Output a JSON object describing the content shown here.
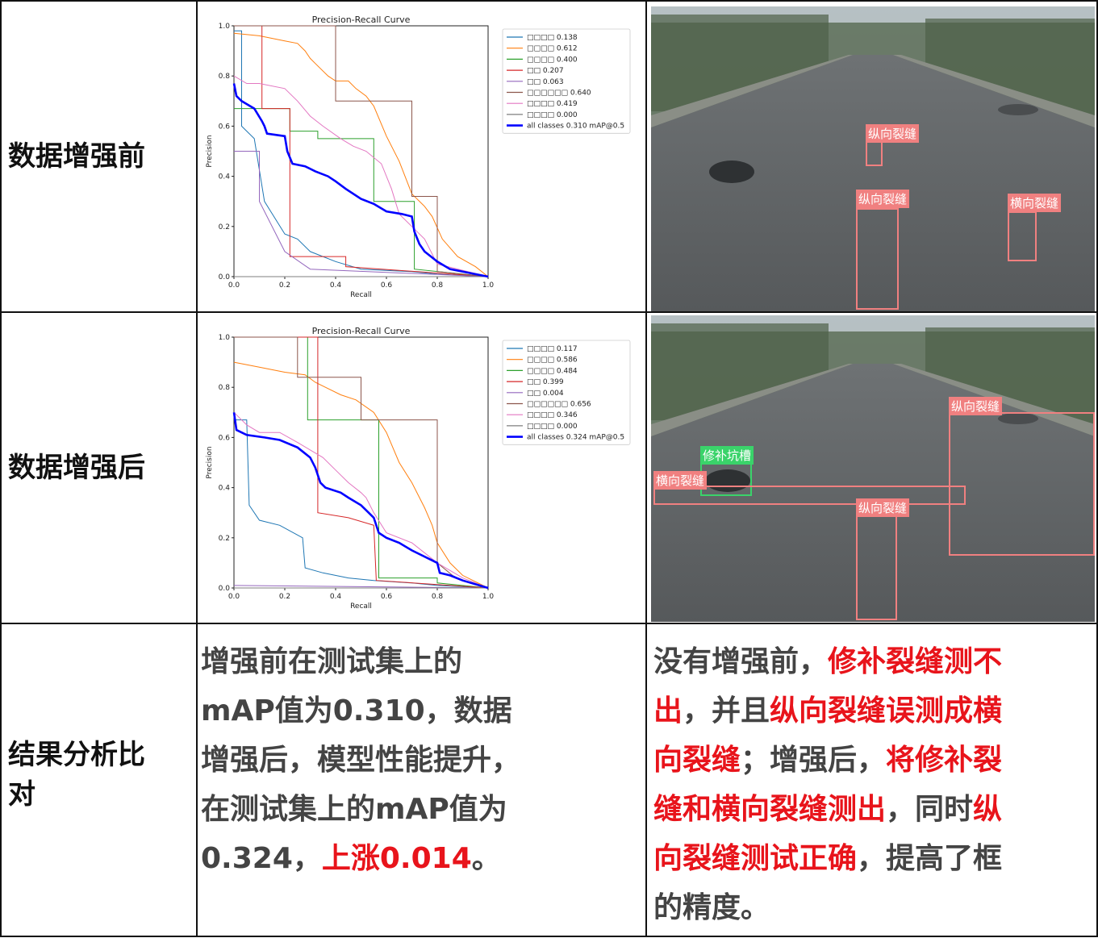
{
  "rows": {
    "before_label": "数据增强前",
    "after_label": "数据增强后",
    "analysis_label_line1": "结果分析比",
    "analysis_label_line2": "对"
  },
  "analysis": {
    "left_lines": [
      [
        {
          "t": "增强前在测试集上的",
          "red": false
        }
      ],
      [
        {
          "t": "mAP值为0.310，数据",
          "red": false
        }
      ],
      [
        {
          "t": "增强后，模型性能提升，",
          "red": false
        }
      ],
      [
        {
          "t": "在测试集上的mAP值为",
          "red": false
        }
      ],
      [
        {
          "t": "0.324，",
          "red": false
        },
        {
          "t": "上涨0.014",
          "red": true
        },
        {
          "t": "。",
          "red": false
        }
      ]
    ],
    "right_lines": [
      [
        {
          "t": "没有增强前，",
          "red": false
        },
        {
          "t": "修补裂缝测不",
          "red": true
        }
      ],
      [
        {
          "t": "出",
          "red": true
        },
        {
          "t": "，并且",
          "red": false
        },
        {
          "t": "纵向裂缝误测成横",
          "red": true
        }
      ],
      [
        {
          "t": "向裂缝",
          "red": true
        },
        {
          "t": "；增强后，",
          "red": false
        },
        {
          "t": "将修补裂",
          "red": true
        }
      ],
      [
        {
          "t": "缝和横向裂缝测出",
          "red": true
        },
        {
          "t": "，同时",
          "red": false
        },
        {
          "t": "纵",
          "red": true
        }
      ],
      [
        {
          "t": "向裂缝测试正确",
          "red": true
        },
        {
          "t": "，提高了框",
          "red": false
        }
      ],
      [
        {
          "t": "的精度。",
          "red": false
        }
      ]
    ]
  },
  "colors": {
    "c0": "#1f77b4",
    "c1": "#ff7f0e",
    "c2": "#2ca02c",
    "c3": "#d62728",
    "c4": "#9467bd",
    "c5": "#8c564b",
    "c6": "#e377c2",
    "c7": "#7f7f7f",
    "all": "#0000ff",
    "det_red": "#f08080",
    "det_green": "#3ad36a"
  },
  "chart_data": [
    {
      "type": "line",
      "title": "Precision-Recall Curve",
      "xlabel": "Recall",
      "ylabel": "Precision",
      "xlim": [
        0,
        1
      ],
      "ylim": [
        0,
        1
      ],
      "xticks": [
        "0.0",
        "0.2",
        "0.4",
        "0.6",
        "0.8",
        "1.0"
      ],
      "yticks": [
        "0.0",
        "0.2",
        "0.4",
        "0.6",
        "0.8",
        "1.0"
      ],
      "legend_position": "top-right",
      "series": [
        {
          "name": "□□□□ 0.138",
          "color": "c0",
          "points": [
            [
              0,
              0.98
            ],
            [
              0.03,
              0.98
            ],
            [
              0.03,
              0.6
            ],
            [
              0.08,
              0.55
            ],
            [
              0.12,
              0.3
            ],
            [
              0.2,
              0.17
            ],
            [
              0.25,
              0.15
            ],
            [
              0.3,
              0.1
            ],
            [
              0.4,
              0.06
            ],
            [
              0.5,
              0.03
            ],
            [
              0.7,
              0.02
            ],
            [
              0.8,
              0.01
            ],
            [
              1,
              0
            ]
          ]
        },
        {
          "name": "□□□□ 0.612",
          "color": "c1",
          "points": [
            [
              0,
              0.97
            ],
            [
              0.1,
              0.96
            ],
            [
              0.2,
              0.94
            ],
            [
              0.25,
              0.93
            ],
            [
              0.28,
              0.9
            ],
            [
              0.3,
              0.87
            ],
            [
              0.32,
              0.85
            ],
            [
              0.37,
              0.8
            ],
            [
              0.4,
              0.78
            ],
            [
              0.45,
              0.78
            ],
            [
              0.48,
              0.75
            ],
            [
              0.52,
              0.72
            ],
            [
              0.55,
              0.68
            ],
            [
              0.6,
              0.56
            ],
            [
              0.65,
              0.46
            ],
            [
              0.7,
              0.33
            ],
            [
              0.75,
              0.28
            ],
            [
              0.78,
              0.24
            ],
            [
              0.82,
              0.15
            ],
            [
              0.88,
              0.08
            ],
            [
              0.95,
              0.04
            ],
            [
              1,
              0
            ]
          ]
        },
        {
          "name": "□□□□ 0.400",
          "color": "c2",
          "points": [
            [
              0,
              0.67
            ],
            [
              0.22,
              0.67
            ],
            [
              0.22,
              0.58
            ],
            [
              0.33,
              0.58
            ],
            [
              0.33,
              0.55
            ],
            [
              0.55,
              0.55
            ],
            [
              0.55,
              0.3
            ],
            [
              0.71,
              0.3
            ],
            [
              0.71,
              0.03
            ],
            [
              1,
              0
            ]
          ]
        },
        {
          "name": "□□ 0.207",
          "color": "c3",
          "points": [
            [
              0,
              1
            ],
            [
              0.11,
              1
            ],
            [
              0.11,
              0.67
            ],
            [
              0.22,
              0.67
            ],
            [
              0.22,
              0.08
            ],
            [
              0.44,
              0.08
            ],
            [
              0.44,
              0.04
            ],
            [
              1,
              0
            ]
          ]
        },
        {
          "name": "□□ 0.063",
          "color": "c4",
          "points": [
            [
              0,
              0.5
            ],
            [
              0.1,
              0.5
            ],
            [
              0.1,
              0.3
            ],
            [
              0.2,
              0.1
            ],
            [
              0.3,
              0.03
            ],
            [
              1,
              0
            ]
          ]
        },
        {
          "name": "□□□□□□ 0.640",
          "color": "c5",
          "points": [
            [
              0,
              1
            ],
            [
              0.4,
              1
            ],
            [
              0.4,
              0.7
            ],
            [
              0.7,
              0.7
            ],
            [
              0.7,
              0.32
            ],
            [
              0.8,
              0.32
            ],
            [
              0.8,
              0.02
            ],
            [
              1,
              0
            ]
          ]
        },
        {
          "name": "□□□□ 0.419",
          "color": "c6",
          "points": [
            [
              0,
              0.8
            ],
            [
              0.05,
              0.77
            ],
            [
              0.1,
              0.77
            ],
            [
              0.2,
              0.75
            ],
            [
              0.25,
              0.7
            ],
            [
              0.3,
              0.64
            ],
            [
              0.35,
              0.6
            ],
            [
              0.42,
              0.55
            ],
            [
              0.47,
              0.52
            ],
            [
              0.52,
              0.5
            ],
            [
              0.58,
              0.45
            ],
            [
              0.62,
              0.35
            ],
            [
              0.65,
              0.25
            ],
            [
              0.7,
              0.2
            ],
            [
              0.75,
              0.15
            ],
            [
              0.8,
              0.05
            ],
            [
              1,
              0
            ]
          ]
        },
        {
          "name": "□□□□ 0.000",
          "color": "c7",
          "points": [
            [
              0,
              0
            ],
            [
              1,
              0
            ]
          ]
        },
        {
          "name": "all classes 0.310 mAP@0.5",
          "color": "all",
          "bold": true,
          "points": [
            [
              0,
              0.77
            ],
            [
              0.01,
              0.72
            ],
            [
              0.03,
              0.7
            ],
            [
              0.08,
              0.67
            ],
            [
              0.11,
              0.62
            ],
            [
              0.12,
              0.6
            ],
            [
              0.13,
              0.57
            ],
            [
              0.2,
              0.56
            ],
            [
              0.21,
              0.5
            ],
            [
              0.23,
              0.45
            ],
            [
              0.28,
              0.44
            ],
            [
              0.32,
              0.42
            ],
            [
              0.37,
              0.4
            ],
            [
              0.4,
              0.38
            ],
            [
              0.44,
              0.35
            ],
            [
              0.5,
              0.31
            ],
            [
              0.55,
              0.29
            ],
            [
              0.6,
              0.26
            ],
            [
              0.66,
              0.25
            ],
            [
              0.7,
              0.24
            ],
            [
              0.71,
              0.18
            ],
            [
              0.73,
              0.13
            ],
            [
              0.75,
              0.1
            ],
            [
              0.8,
              0.06
            ],
            [
              0.85,
              0.03
            ],
            [
              0.95,
              0.01
            ],
            [
              1,
              0
            ]
          ]
        }
      ]
    },
    {
      "type": "line",
      "title": "Precision-Recall Curve",
      "xlabel": "Recall",
      "ylabel": "Precision",
      "xlim": [
        0,
        1
      ],
      "ylim": [
        0,
        1
      ],
      "xticks": [
        "0.0",
        "0.2",
        "0.4",
        "0.6",
        "0.8",
        "1.0"
      ],
      "yticks": [
        "0.0",
        "0.2",
        "0.4",
        "0.6",
        "0.8",
        "1.0"
      ],
      "legend_position": "top-right",
      "series": [
        {
          "name": "□□□□ 0.117",
          "color": "c0",
          "points": [
            [
              0,
              0.67
            ],
            [
              0.05,
              0.67
            ],
            [
              0.06,
              0.33
            ],
            [
              0.1,
              0.27
            ],
            [
              0.18,
              0.25
            ],
            [
              0.27,
              0.2
            ],
            [
              0.28,
              0.08
            ],
            [
              0.35,
              0.06
            ],
            [
              0.45,
              0.04
            ],
            [
              0.55,
              0.03
            ],
            [
              0.7,
              0.02
            ],
            [
              0.8,
              0.01
            ],
            [
              1,
              0
            ]
          ]
        },
        {
          "name": "□□□□ 0.586",
          "color": "c1",
          "points": [
            [
              0,
              0.9
            ],
            [
              0.1,
              0.88
            ],
            [
              0.2,
              0.86
            ],
            [
              0.28,
              0.85
            ],
            [
              0.32,
              0.82
            ],
            [
              0.36,
              0.8
            ],
            [
              0.42,
              0.77
            ],
            [
              0.48,
              0.75
            ],
            [
              0.55,
              0.7
            ],
            [
              0.6,
              0.62
            ],
            [
              0.65,
              0.5
            ],
            [
              0.7,
              0.42
            ],
            [
              0.75,
              0.32
            ],
            [
              0.78,
              0.25
            ],
            [
              0.8,
              0.18
            ],
            [
              0.85,
              0.1
            ],
            [
              0.9,
              0.05
            ],
            [
              1,
              0
            ]
          ]
        },
        {
          "name": "□□□□ 0.484",
          "color": "c2",
          "points": [
            [
              0,
              1
            ],
            [
              0.29,
              1
            ],
            [
              0.29,
              0.67
            ],
            [
              0.57,
              0.67
            ],
            [
              0.57,
              0.04
            ],
            [
              0.8,
              0.04
            ],
            [
              0.8,
              0.02
            ],
            [
              1,
              0
            ]
          ]
        },
        {
          "name": "□□ 0.399",
          "color": "c3",
          "points": [
            [
              0,
              1
            ],
            [
              0.33,
              1
            ],
            [
              0.33,
              0.3
            ],
            [
              0.45,
              0.28
            ],
            [
              0.55,
              0.25
            ],
            [
              0.56,
              0.03
            ],
            [
              1,
              0
            ]
          ]
        },
        {
          "name": "□□ 0.004",
          "color": "c4",
          "points": [
            [
              0,
              0.01
            ],
            [
              1,
              0
            ]
          ]
        },
        {
          "name": "□□□□□□ 0.656",
          "color": "c5",
          "points": [
            [
              0,
              1
            ],
            [
              0.25,
              1
            ],
            [
              0.25,
              0.84
            ],
            [
              0.5,
              0.84
            ],
            [
              0.5,
              0.67
            ],
            [
              0.8,
              0.67
            ],
            [
              0.8,
              0.1
            ],
            [
              0.86,
              0.05
            ],
            [
              0.9,
              0.03
            ],
            [
              1,
              0
            ]
          ]
        },
        {
          "name": "□□□□ 0.346",
          "color": "c6",
          "points": [
            [
              0,
              0.7
            ],
            [
              0.05,
              0.65
            ],
            [
              0.1,
              0.62
            ],
            [
              0.18,
              0.62
            ],
            [
              0.25,
              0.58
            ],
            [
              0.3,
              0.55
            ],
            [
              0.35,
              0.52
            ],
            [
              0.4,
              0.47
            ],
            [
              0.45,
              0.42
            ],
            [
              0.5,
              0.38
            ],
            [
              0.52,
              0.36
            ],
            [
              0.55,
              0.3
            ],
            [
              0.6,
              0.22
            ],
            [
              0.7,
              0.18
            ],
            [
              0.8,
              0.1
            ],
            [
              0.9,
              0.04
            ],
            [
              1,
              0
            ]
          ]
        },
        {
          "name": "□□□□ 0.000",
          "color": "c7",
          "points": [
            [
              0,
              0
            ],
            [
              1,
              0
            ]
          ]
        },
        {
          "name": "all classes 0.324 mAP@0.5",
          "color": "all",
          "bold": true,
          "points": [
            [
              0,
              0.7
            ],
            [
              0.01,
              0.63
            ],
            [
              0.05,
              0.61
            ],
            [
              0.12,
              0.6
            ],
            [
              0.18,
              0.59
            ],
            [
              0.25,
              0.56
            ],
            [
              0.3,
              0.52
            ],
            [
              0.32,
              0.48
            ],
            [
              0.34,
              0.42
            ],
            [
              0.36,
              0.4
            ],
            [
              0.42,
              0.38
            ],
            [
              0.45,
              0.36
            ],
            [
              0.5,
              0.33
            ],
            [
              0.55,
              0.28
            ],
            [
              0.57,
              0.22
            ],
            [
              0.6,
              0.2
            ],
            [
              0.65,
              0.18
            ],
            [
              0.7,
              0.15
            ],
            [
              0.8,
              0.1
            ],
            [
              0.81,
              0.06
            ],
            [
              0.85,
              0.05
            ],
            [
              0.9,
              0.03
            ],
            [
              1,
              0
            ]
          ]
        }
      ]
    }
  ],
  "detections": {
    "top": [
      {
        "label": "纵向裂缝",
        "color": "det_red"
      },
      {
        "label": "纵向裂缝",
        "color": "det_red"
      },
      {
        "label": "横向裂缝",
        "color": "det_red"
      }
    ],
    "bottom": [
      {
        "label": "纵向裂缝",
        "color": "det_red"
      },
      {
        "label": "修补坑槽",
        "color": "det_green"
      },
      {
        "label": "横向裂缝",
        "color": "det_red"
      },
      {
        "label": "纵向裂缝",
        "color": "det_red"
      }
    ]
  }
}
